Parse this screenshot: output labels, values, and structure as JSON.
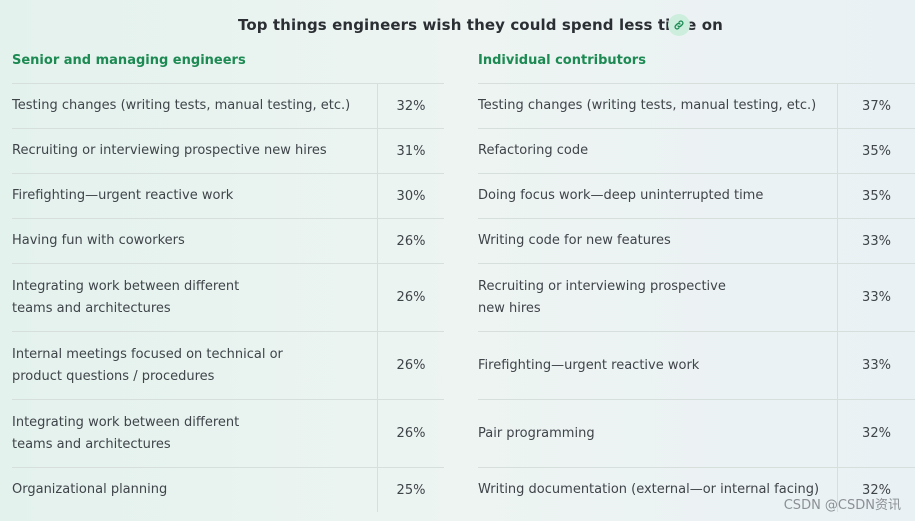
{
  "header": {
    "title": "Top things engineers wish they could spend less time on",
    "link_icon": "link-icon"
  },
  "colors": {
    "heading_green": "#1c8a52",
    "link_badge_bg": "#cdeedd",
    "divider": "#d7dfdc"
  },
  "left_table": {
    "heading": "Senior and managing engineers",
    "rows": [
      {
        "label": "Testing changes (writing tests, manual testing, etc.)",
        "percent": "32%"
      },
      {
        "label": "Recruiting or interviewing prospective new hires",
        "percent": "31%"
      },
      {
        "label": "Firefighting—urgent reactive work",
        "percent": "30%"
      },
      {
        "label": "Having fun with coworkers",
        "percent": "26%"
      },
      {
        "label": "Integrating work between different teams and architectures",
        "percent": "26%"
      },
      {
        "label": "Internal meetings focused on technical or product questions / procedures",
        "percent": "26%"
      },
      {
        "label": "Integrating work between different teams and architectures",
        "percent": "26%"
      },
      {
        "label": "Organizational planning",
        "percent": "25%"
      }
    ]
  },
  "right_table": {
    "heading": "Individual contributors",
    "rows": [
      {
        "label": "Testing changes (writing tests, manual testing, etc.)",
        "percent": "37%"
      },
      {
        "label": "Refactoring code",
        "percent": "35%"
      },
      {
        "label": "Doing focus work—deep uninterrupted time",
        "percent": "35%"
      },
      {
        "label": "Writing code for new features",
        "percent": "33%"
      },
      {
        "label": "Recruiting or interviewing prospective new hires",
        "percent": "33%"
      },
      {
        "label": "Firefighting—urgent reactive work",
        "percent": "33%"
      },
      {
        "label": "Pair programming",
        "percent": "32%"
      },
      {
        "label": "Writing documentation (external—or internal facing)",
        "percent": "32%"
      }
    ]
  },
  "watermark": "CSDN @CSDN资讯"
}
